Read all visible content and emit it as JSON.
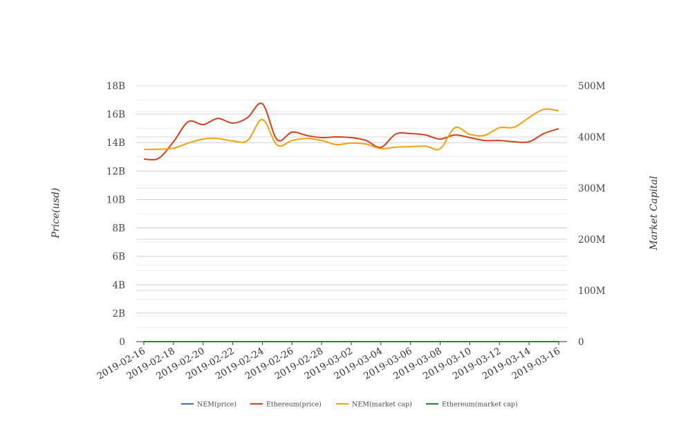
{
  "chart_data": {
    "type": "line",
    "title": "",
    "xlabel": "",
    "ylabel": "Price(usd)",
    "ylabel_right": "Market Capital",
    "ylim": [
      0,
      18000000000
    ],
    "ylim_right": [
      0,
      500000000
    ],
    "y_ticks": [
      "0",
      "2B",
      "4B",
      "6B",
      "8B",
      "10B",
      "12B",
      "14B",
      "16B",
      "18B"
    ],
    "y_ticks_right": [
      "0",
      "100M",
      "200M",
      "300M",
      "400M",
      "500M"
    ],
    "x": [
      "2019-02-16",
      "2019-02-17",
      "2019-02-18",
      "2019-02-19",
      "2019-02-20",
      "2019-02-21",
      "2019-02-22",
      "2019-02-23",
      "2019-02-24",
      "2019-02-25",
      "2019-02-26",
      "2019-02-27",
      "2019-02-28",
      "2019-03-01",
      "2019-03-02",
      "2019-03-03",
      "2019-03-04",
      "2019-03-05",
      "2019-03-06",
      "2019-03-07",
      "2019-03-08",
      "2019-03-09",
      "2019-03-10",
      "2019-03-11",
      "2019-03-12",
      "2019-03-13",
      "2019-03-14",
      "2019-03-15",
      "2019-03-16"
    ],
    "x_ticks": [
      "2019-02-16",
      "2019-02-18",
      "2019-02-20",
      "2019-02-22",
      "2019-02-24",
      "2019-02-26",
      "2019-02-28",
      "2019-03-02",
      "2019-03-04",
      "2019-03-06",
      "2019-03-08",
      "2019-03-10",
      "2019-03-12",
      "2019-03-14",
      "2019-03-16"
    ],
    "legend_position": "bottom",
    "grid": true,
    "series": [
      {
        "name": "NEM(price)",
        "axis": "left",
        "color": "#3d6eb4",
        "values": [
          0,
          0,
          0,
          0,
          0,
          0,
          0,
          0,
          0,
          0,
          0,
          0,
          0,
          0,
          0,
          0,
          0,
          0,
          0,
          0,
          0,
          0,
          0,
          0,
          0,
          0,
          0,
          0,
          0
        ]
      },
      {
        "name": "Ethereum(price)",
        "axis": "left",
        "color": "#d2401c",
        "values": [
          12840000000.0,
          12900000000.0,
          14060000000.0,
          15470000000.0,
          15270000000.0,
          15700000000.0,
          15370000000.0,
          15760000000.0,
          16730000000.0,
          14200000000.0,
          14740000000.0,
          14500000000.0,
          14350000000.0,
          14400000000.0,
          14350000000.0,
          14150000000.0,
          13670000000.0,
          14600000000.0,
          14640000000.0,
          14540000000.0,
          14250000000.0,
          14540000000.0,
          14350000000.0,
          14150000000.0,
          14150000000.0,
          14060000000.0,
          14060000000.0,
          14640000000.0,
          14980000000.0
        ]
      },
      {
        "name": "NEM(market cap)",
        "axis": "right",
        "color": "#f5a00f",
        "values": [
          375700000.0,
          376000000.0,
          378000000.0,
          388000000.0,
          396000000.0,
          397000000.0,
          392000000.0,
          393000000.0,
          434000000.0,
          384000000.0,
          393000000.0,
          397000000.0,
          393000000.0,
          385000000.0,
          388000000.0,
          386000000.0,
          377000000.0,
          380000000.0,
          381000000.0,
          382000000.0,
          377000000.0,
          418000000.0,
          405000000.0,
          403000000.0,
          418000000.0,
          419000000.0,
          438000000.0,
          454000000.0,
          451000000.0
        ]
      },
      {
        "name": "Ethereum(market cap)",
        "axis": "right",
        "color": "#1a8f2a",
        "values": [
          0,
          0,
          0,
          0,
          0,
          0,
          0,
          0,
          0,
          0,
          0,
          0,
          0,
          0,
          0,
          0,
          0,
          0,
          0,
          0,
          0,
          0,
          0,
          0,
          0,
          0,
          0,
          0,
          0
        ]
      }
    ]
  }
}
